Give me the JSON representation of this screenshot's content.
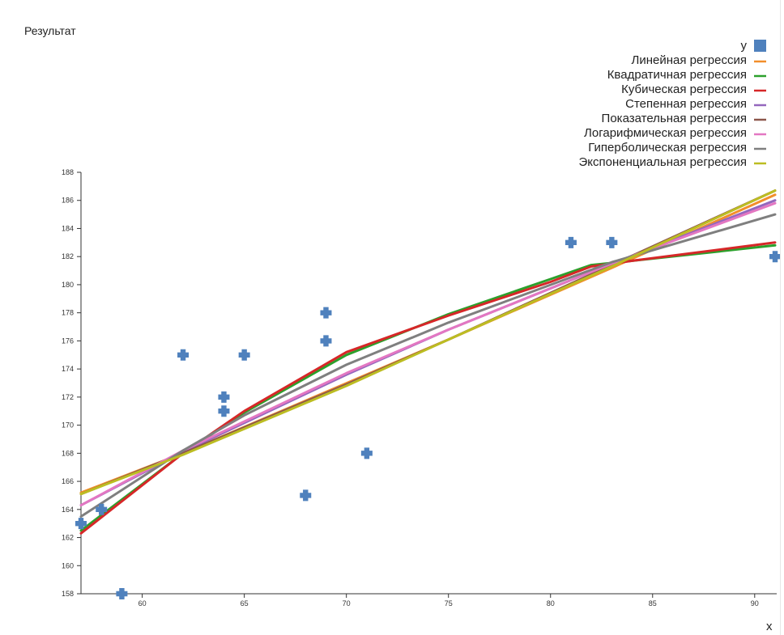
{
  "title": "Результат",
  "chart_data": {
    "type": "scatter",
    "title": "Результат",
    "xlabel": "x",
    "ylabel": "",
    "xlim": [
      57,
      91
    ],
    "ylim": [
      158,
      188
    ],
    "x_ticks": [
      60,
      65,
      70,
      75,
      80,
      85,
      90
    ],
    "y_ticks": [
      158,
      160,
      162,
      164,
      166,
      168,
      170,
      172,
      174,
      176,
      178,
      180,
      182,
      184,
      186,
      188
    ],
    "grid": false,
    "legend_position": "top-right",
    "points": {
      "name": "y",
      "color": "#4f81bd",
      "marker": "plus",
      "x": [
        57,
        58,
        59,
        62,
        64,
        64,
        65,
        68,
        69,
        69,
        71,
        81,
        83,
        91
      ],
      "y": [
        163,
        164,
        158,
        175,
        172,
        171,
        175,
        165,
        178,
        176,
        168,
        183,
        183,
        182
      ]
    },
    "series": [
      {
        "name": "Линейная регрессия",
        "color": "#f28e2b",
        "x": [
          57,
          62,
          75,
          83,
          91
        ],
        "y": [
          165.2,
          168.0,
          176.1,
          181.2,
          186.4
        ]
      },
      {
        "name": "Квадратичная регрессия",
        "color": "#2ca02c",
        "x": [
          57,
          62,
          65,
          70,
          75,
          80,
          82,
          84,
          91
        ],
        "y": [
          162.5,
          168.0,
          170.9,
          175.0,
          177.9,
          180.4,
          181.4,
          181.7,
          182.8
        ]
      },
      {
        "name": "Кубическая регрессия",
        "color": "#d62728",
        "x": [
          57,
          62,
          65,
          70,
          75,
          80,
          82,
          84,
          91
        ],
        "y": [
          162.3,
          168.0,
          171.0,
          175.2,
          177.8,
          180.2,
          181.3,
          181.7,
          183.0
        ]
      },
      {
        "name": "Степенная регрессия",
        "color": "#9467bd",
        "x": [
          57,
          62,
          70,
          75,
          83,
          91
        ],
        "y": [
          164.3,
          168.1,
          173.6,
          176.8,
          181.5,
          186.0
        ]
      },
      {
        "name": "Показательная регрессия",
        "color": "#8c564b",
        "x": [
          57,
          62,
          70,
          75,
          83,
          91
        ],
        "y": [
          165.1,
          168.0,
          172.9,
          176.1,
          181.4,
          186.7
        ]
      },
      {
        "name": "Логарифмическая регрессия",
        "color": "#e377c2",
        "x": [
          57,
          62,
          70,
          75,
          83,
          91
        ],
        "y": [
          164.3,
          168.2,
          173.7,
          176.8,
          181.5,
          185.8
        ]
      },
      {
        "name": "Гиперболическая регрессия",
        "color": "#7f7f7f",
        "x": [
          57,
          62,
          65,
          70,
          75,
          83,
          91
        ],
        "y": [
          163.5,
          168.2,
          170.7,
          174.3,
          177.3,
          181.6,
          185.0
        ]
      },
      {
        "name": "Экспоненциальная регрессия",
        "color": "#bcbd22",
        "x": [
          57,
          62,
          70,
          75,
          83,
          91
        ],
        "y": [
          165.1,
          167.9,
          172.8,
          176.1,
          181.3,
          186.7
        ]
      }
    ]
  }
}
